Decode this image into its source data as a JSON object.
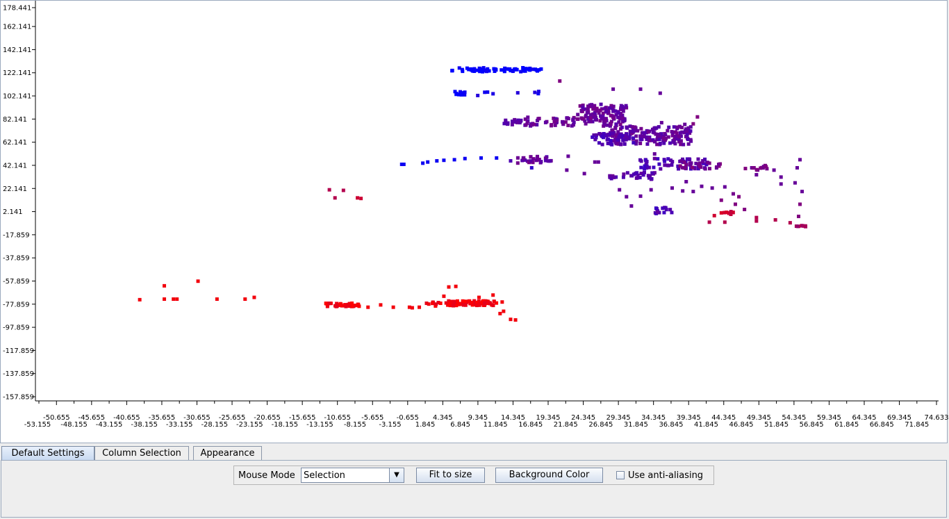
{
  "chart_data": {
    "type": "scatter",
    "title": "",
    "xlabel": "",
    "ylabel": "",
    "xlim": [
      -54.0,
      75.0
    ],
    "ylim": [
      -159.0,
      179.0
    ],
    "y_ticks": [
      "178.441",
      "162.141",
      "142.141",
      "122.141",
      "102.141",
      "82.141",
      "62.141",
      "42.141",
      "22.141",
      "2.141",
      "-17.859",
      "-37.859",
      "-57.859",
      "-77.859",
      "-97.859",
      "-117.859",
      "-137.859",
      "-157.859"
    ],
    "x_ticks_upper": [
      "-50.655",
      "-45.655",
      "-40.655",
      "-35.655",
      "-30.655",
      "-25.655",
      "-20.655",
      "-15.655",
      "-10.655",
      "-5.655",
      "-0.655",
      "4.345",
      "9.345",
      "14.345",
      "19.345",
      "24.345",
      "29.345",
      "34.345",
      "39.345",
      "44.345",
      "49.345",
      "54.345",
      "59.345",
      "64.345",
      "69.345",
      "74.633"
    ],
    "x_ticks_lower": [
      "-53.155",
      "-48.155",
      "-43.155",
      "-38.155",
      "-33.155",
      "-28.155",
      "-23.155",
      "-18.155",
      "-13.155",
      "-8.155",
      "-3.155",
      "1.845",
      "6.845",
      "11.845",
      "16.845",
      "21.845",
      "26.845",
      "31.845",
      "36.845",
      "41.845",
      "46.845",
      "51.845",
      "56.845",
      "61.845",
      "66.845",
      "71.845"
    ],
    "x_ticks_upper_values": [
      -50.655,
      -45.655,
      -40.655,
      -35.655,
      -30.655,
      -25.655,
      -20.655,
      -15.655,
      -10.655,
      -5.655,
      -0.655,
      4.345,
      9.345,
      14.345,
      19.345,
      24.345,
      29.345,
      34.345,
      39.345,
      44.345,
      49.345,
      54.345,
      59.345,
      64.345,
      69.345,
      74.633
    ],
    "x_ticks_lower_values": [
      -53.155,
      -48.155,
      -43.155,
      -38.155,
      -33.155,
      -28.155,
      -23.155,
      -18.155,
      -13.155,
      -8.155,
      -3.155,
      1.845,
      6.845,
      11.845,
      16.845,
      21.845,
      26.845,
      31.845,
      36.845,
      41.845,
      46.845,
      51.845,
      56.845,
      61.845,
      66.845,
      71.845
    ],
    "y_tick_values": [
      178.441,
      162.141,
      142.141,
      122.141,
      102.141,
      82.141,
      62.141,
      42.141,
      22.141,
      2.141,
      -17.859,
      -37.859,
      -57.859,
      -77.859,
      -97.859,
      -117.859,
      -137.859,
      -157.859
    ],
    "color_scale": {
      "low": "#ff0000",
      "high": "#0000ff"
    },
    "clusters": [
      {
        "x": [
          5.6,
          18.4
        ],
        "y": [
          123.0,
          126.5
        ],
        "n": 70,
        "c": 1.0
      },
      {
        "x": [
          5.5,
          7.5
        ],
        "y": [
          103.0,
          106.0
        ],
        "n": 10,
        "c": 0.95
      },
      {
        "x": [
          7.0,
          18.5
        ],
        "y": [
          102.0,
          106.0
        ],
        "n": 6,
        "c": 0.9
      },
      {
        "x": [
          13.0,
          15.5
        ],
        "y": [
          77.0,
          82.0
        ],
        "n": 16,
        "c": 0.65
      },
      {
        "x": [
          16.0,
          30.5
        ],
        "y": [
          76.0,
          84.0
        ],
        "n": 80,
        "c": 0.6
      },
      {
        "x": [
          23.5,
          30.5
        ],
        "y": [
          82.0,
          95.0
        ],
        "n": 90,
        "c": 0.6
      },
      {
        "x": [
          28.0,
          40.0
        ],
        "y": [
          60.0,
          76.0
        ],
        "n": 170,
        "c": 0.62
      },
      {
        "x": [
          25.5,
          31.5
        ],
        "y": [
          60.0,
          70.0
        ],
        "n": 40,
        "c": 0.7
      },
      {
        "x": [
          15.0,
          20.0
        ],
        "y": [
          44.0,
          50.0
        ],
        "n": 30,
        "c": 0.6
      },
      {
        "x": [
          32.0,
          42.0
        ],
        "y": [
          39.0,
          48.0
        ],
        "n": 55,
        "c": 0.7
      },
      {
        "x": [
          38.0,
          44.0
        ],
        "y": [
          39.0,
          46.0
        ],
        "n": 25,
        "c": 0.55
      },
      {
        "x": [
          28.0,
          35.0
        ],
        "y": [
          30.0,
          36.0
        ],
        "n": 30,
        "c": 0.65
      },
      {
        "x": [
          47.0,
          51.0
        ],
        "y": [
          38.0,
          42.0
        ],
        "n": 14,
        "c": 0.55
      },
      {
        "x": [
          34.5,
          37.0
        ],
        "y": [
          0.0,
          6.0
        ],
        "n": 14,
        "c": 0.7
      },
      {
        "x": [
          43.0,
          46.0
        ],
        "y": [
          -2.0,
          3.0
        ],
        "n": 10,
        "c": 0.2
      },
      {
        "x": [
          5.0,
          12.0
        ],
        "y": [
          -79.0,
          -75.0
        ],
        "n": 80,
        "c": 0.05
      },
      {
        "x": [
          -12.5,
          -7.5
        ],
        "y": [
          -80.0,
          -77.0
        ],
        "n": 40,
        "c": 0.05
      },
      {
        "x": [
          2.0,
          6.0
        ],
        "y": [
          -80.0,
          -76.0
        ],
        "n": 14,
        "c": 0.05
      },
      {
        "x": [
          54.5,
          56.0
        ],
        "y": [
          -11.0,
          -9.5
        ],
        "n": 8,
        "c": 0.35
      }
    ],
    "points": [
      [
        -1.5,
        43.0,
        0.95
      ],
      [
        -1.2,
        43.0,
        0.95
      ],
      [
        1.5,
        44.0,
        0.95
      ],
      [
        2.2,
        45.0,
        0.95
      ],
      [
        3.5,
        46.0,
        0.95
      ],
      [
        4.5,
        46.5,
        0.95
      ],
      [
        6.0,
        47.0,
        0.95
      ],
      [
        7.5,
        48.0,
        0.95
      ],
      [
        9.8,
        48.5,
        0.95
      ],
      [
        12.0,
        48.5,
        0.95
      ],
      [
        14.0,
        46.0,
        0.7
      ],
      [
        17.0,
        40.0,
        0.8
      ],
      [
        -11.8,
        21.0,
        0.3
      ],
      [
        -9.8,
        20.5,
        0.3
      ],
      [
        -11.0,
        14.0,
        0.3
      ],
      [
        -7.8,
        14.0,
        0.2
      ],
      [
        -7.3,
        13.5,
        0.2
      ],
      [
        11.5,
        104.0,
        0.9
      ],
      [
        18.0,
        106.0,
        0.9
      ],
      [
        21.0,
        115.0,
        0.5
      ],
      [
        28.6,
        108.0,
        0.6
      ],
      [
        32.5,
        108.0,
        0.6
      ],
      [
        35.3,
        104.5,
        0.6
      ],
      [
        35.5,
        79.0,
        0.6
      ],
      [
        38.8,
        77.5,
        0.6
      ],
      [
        40.6,
        84.0,
        0.5
      ],
      [
        40.0,
        78.0,
        0.5
      ],
      [
        22.2,
        50.0,
        0.6
      ],
      [
        26.5,
        45.0,
        0.6
      ],
      [
        34.5,
        52.0,
        0.6
      ],
      [
        34.5,
        48.0,
        0.6
      ],
      [
        22.0,
        38.0,
        0.6
      ],
      [
        24.5,
        35.0,
        0.6
      ],
      [
        26.0,
        45.0,
        0.6
      ],
      [
        29.5,
        21.0,
        0.6
      ],
      [
        30.5,
        15.0,
        0.6
      ],
      [
        31.2,
        7.0,
        0.6
      ],
      [
        32.5,
        15.5,
        0.6
      ],
      [
        34.0,
        21.0,
        0.6
      ],
      [
        37.0,
        22.5,
        0.6
      ],
      [
        38.5,
        20.0,
        0.6
      ],
      [
        39.0,
        28.0,
        0.6
      ],
      [
        41.2,
        24.0,
        0.6
      ],
      [
        42.7,
        22.5,
        0.6
      ],
      [
        40.0,
        19.5,
        0.6
      ],
      [
        44.5,
        23.5,
        0.6
      ],
      [
        45.7,
        17.5,
        0.55
      ],
      [
        46.5,
        15.0,
        0.5
      ],
      [
        44.0,
        12.0,
        0.5
      ],
      [
        46.0,
        8.5,
        0.5
      ],
      [
        47.3,
        4.0,
        0.5
      ],
      [
        42.3,
        -7.0,
        0.3
      ],
      [
        44.5,
        -7.0,
        0.3
      ],
      [
        49.0,
        -6.0,
        0.3
      ],
      [
        49.0,
        -3.0,
        0.3
      ],
      [
        51.7,
        -5.0,
        0.3
      ],
      [
        53.8,
        -7.5,
        0.3
      ],
      [
        49.0,
        34.0,
        0.6
      ],
      [
        51.5,
        38.0,
        0.6
      ],
      [
        52.5,
        32.0,
        0.6
      ],
      [
        54.5,
        27.0,
        0.6
      ],
      [
        55.5,
        19.5,
        0.6
      ],
      [
        54.8,
        40.0,
        0.6
      ],
      [
        55.2,
        47.0,
        0.6
      ],
      [
        55.0,
        -2.0,
        0.5
      ],
      [
        55.2,
        8.5,
        0.5
      ],
      [
        52.5,
        26.0,
        0.6
      ],
      [
        -38.8,
        -74.0,
        0.05
      ],
      [
        -35.3,
        -62.0,
        0.05
      ],
      [
        -35.3,
        -73.5,
        0.05
      ],
      [
        -33.5,
        -73.5,
        0.05
      ],
      [
        -34.0,
        -73.5,
        0.05
      ],
      [
        -30.5,
        -58.0,
        0.05
      ],
      [
        -27.8,
        -73.5,
        0.05
      ],
      [
        -23.8,
        -73.5,
        0.05
      ],
      [
        -22.5,
        -72.0,
        0.05
      ],
      [
        -6.3,
        -80.5,
        0.05
      ],
      [
        -4.5,
        -78.5,
        0.05
      ],
      [
        -2.7,
        -80.5,
        0.05
      ],
      [
        -0.4,
        -80.5,
        0.05
      ],
      [
        1.0,
        -80.5,
        0.05
      ],
      [
        0.0,
        -81.0,
        0.05
      ],
      [
        5.2,
        -63.0,
        0.05
      ],
      [
        6.2,
        -62.5,
        0.05
      ],
      [
        4.5,
        -71.0,
        0.05
      ],
      [
        9.5,
        -72.0,
        0.05
      ],
      [
        11.5,
        -70.0,
        0.05
      ],
      [
        12.8,
        -76.0,
        0.05
      ],
      [
        13.0,
        -84.0,
        0.05
      ],
      [
        12.5,
        -86.0,
        0.05
      ],
      [
        14.0,
        -91.0,
        0.05
      ],
      [
        14.7,
        -91.5,
        0.05
      ]
    ]
  },
  "tabs": [
    {
      "label": "Default Settings"
    },
    {
      "label": "Column Selection"
    },
    {
      "label": "Appearance"
    }
  ],
  "controls": {
    "mouse_mode_label": "Mouse Mode",
    "mouse_mode_value": "Selection",
    "fit_button": "Fit to size",
    "background_button": "Background Color",
    "antialias_label": "Use anti-aliasing",
    "antialias_checked": false
  }
}
